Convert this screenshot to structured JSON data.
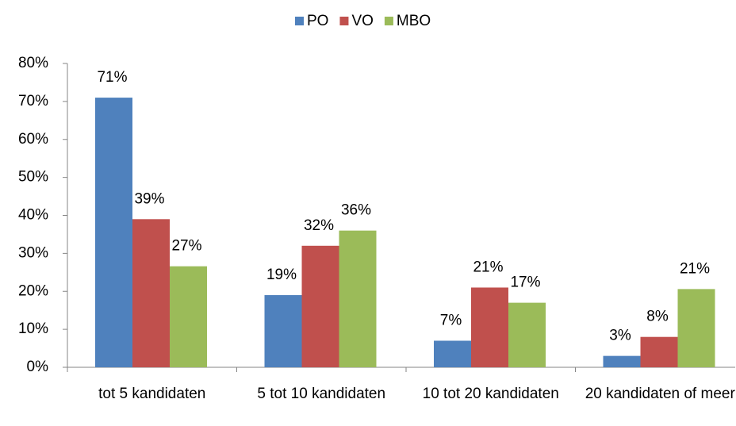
{
  "chart_data": {
    "type": "bar",
    "categories": [
      "tot 5 kandidaten",
      "5 tot 10 kandidaten",
      "10 tot 20 kandidaten",
      "20 kandidaten of meer"
    ],
    "series": [
      {
        "name": "PO",
        "color": "#4f81bd",
        "values": [
          71,
          19,
          7,
          3
        ],
        "value_labels": [
          "71%",
          "19%",
          "7%",
          "3%"
        ]
      },
      {
        "name": "VO",
        "color": "#c0504d",
        "values": [
          39,
          32,
          21,
          8
        ],
        "value_labels": [
          "39%",
          "32%",
          "21%",
          "8%"
        ]
      },
      {
        "name": "MBO",
        "color": "#9bbb59",
        "values": [
          26.6,
          36,
          17,
          20.6
        ],
        "value_labels": [
          "27%",
          "36%",
          "17%",
          "21%"
        ]
      }
    ],
    "ylim": [
      0,
      80
    ],
    "yticks": [
      {
        "value": 0,
        "label": "0%"
      },
      {
        "value": 10,
        "label": "10%"
      },
      {
        "value": 20,
        "label": "20%"
      },
      {
        "value": 30,
        "label": "30%"
      },
      {
        "value": 40,
        "label": "40%"
      },
      {
        "value": 50,
        "label": "50%"
      },
      {
        "value": 60,
        "label": "60%"
      },
      {
        "value": 70,
        "label": "70%"
      },
      {
        "value": 80,
        "label": "80%"
      }
    ],
    "legend": "top"
  }
}
